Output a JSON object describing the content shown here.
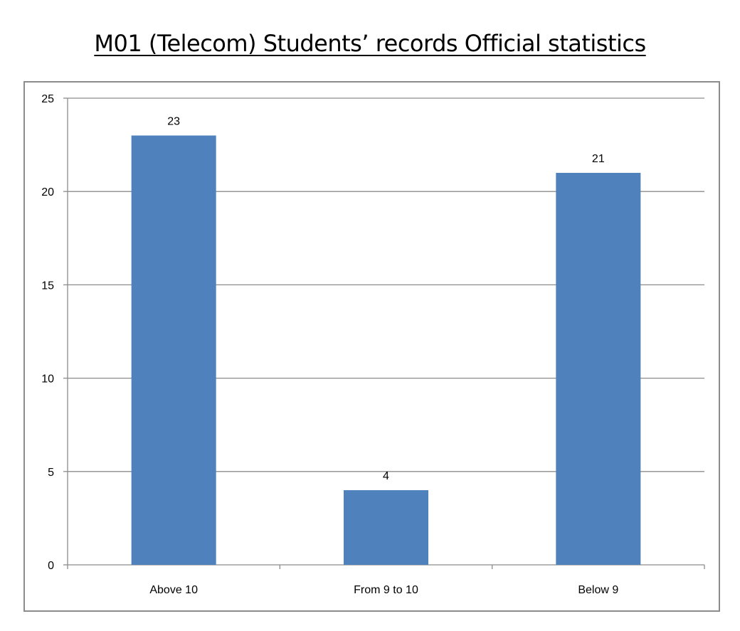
{
  "chart_data": {
    "type": "bar",
    "title": "M01 (Telecom) Students’ records Official statistics",
    "categories": [
      "Above 10",
      "From 9 to 10",
      "Below 9"
    ],
    "values": [
      23,
      4,
      21
    ],
    "data_labels": [
      "23",
      "4",
      "21"
    ],
    "xlabel": "",
    "ylabel": "",
    "ylim": [
      0,
      25
    ],
    "yticks": [
      0,
      5,
      10,
      15,
      20,
      25
    ],
    "ytick_labels": [
      "0",
      "5",
      "10",
      "15",
      "20",
      "25"
    ],
    "grid": true,
    "legend": "none",
    "colors": {
      "bar": "#4f81bd",
      "grid": "#8c8c8c",
      "axis": "#8c8c8c",
      "text": "#000000"
    }
  }
}
